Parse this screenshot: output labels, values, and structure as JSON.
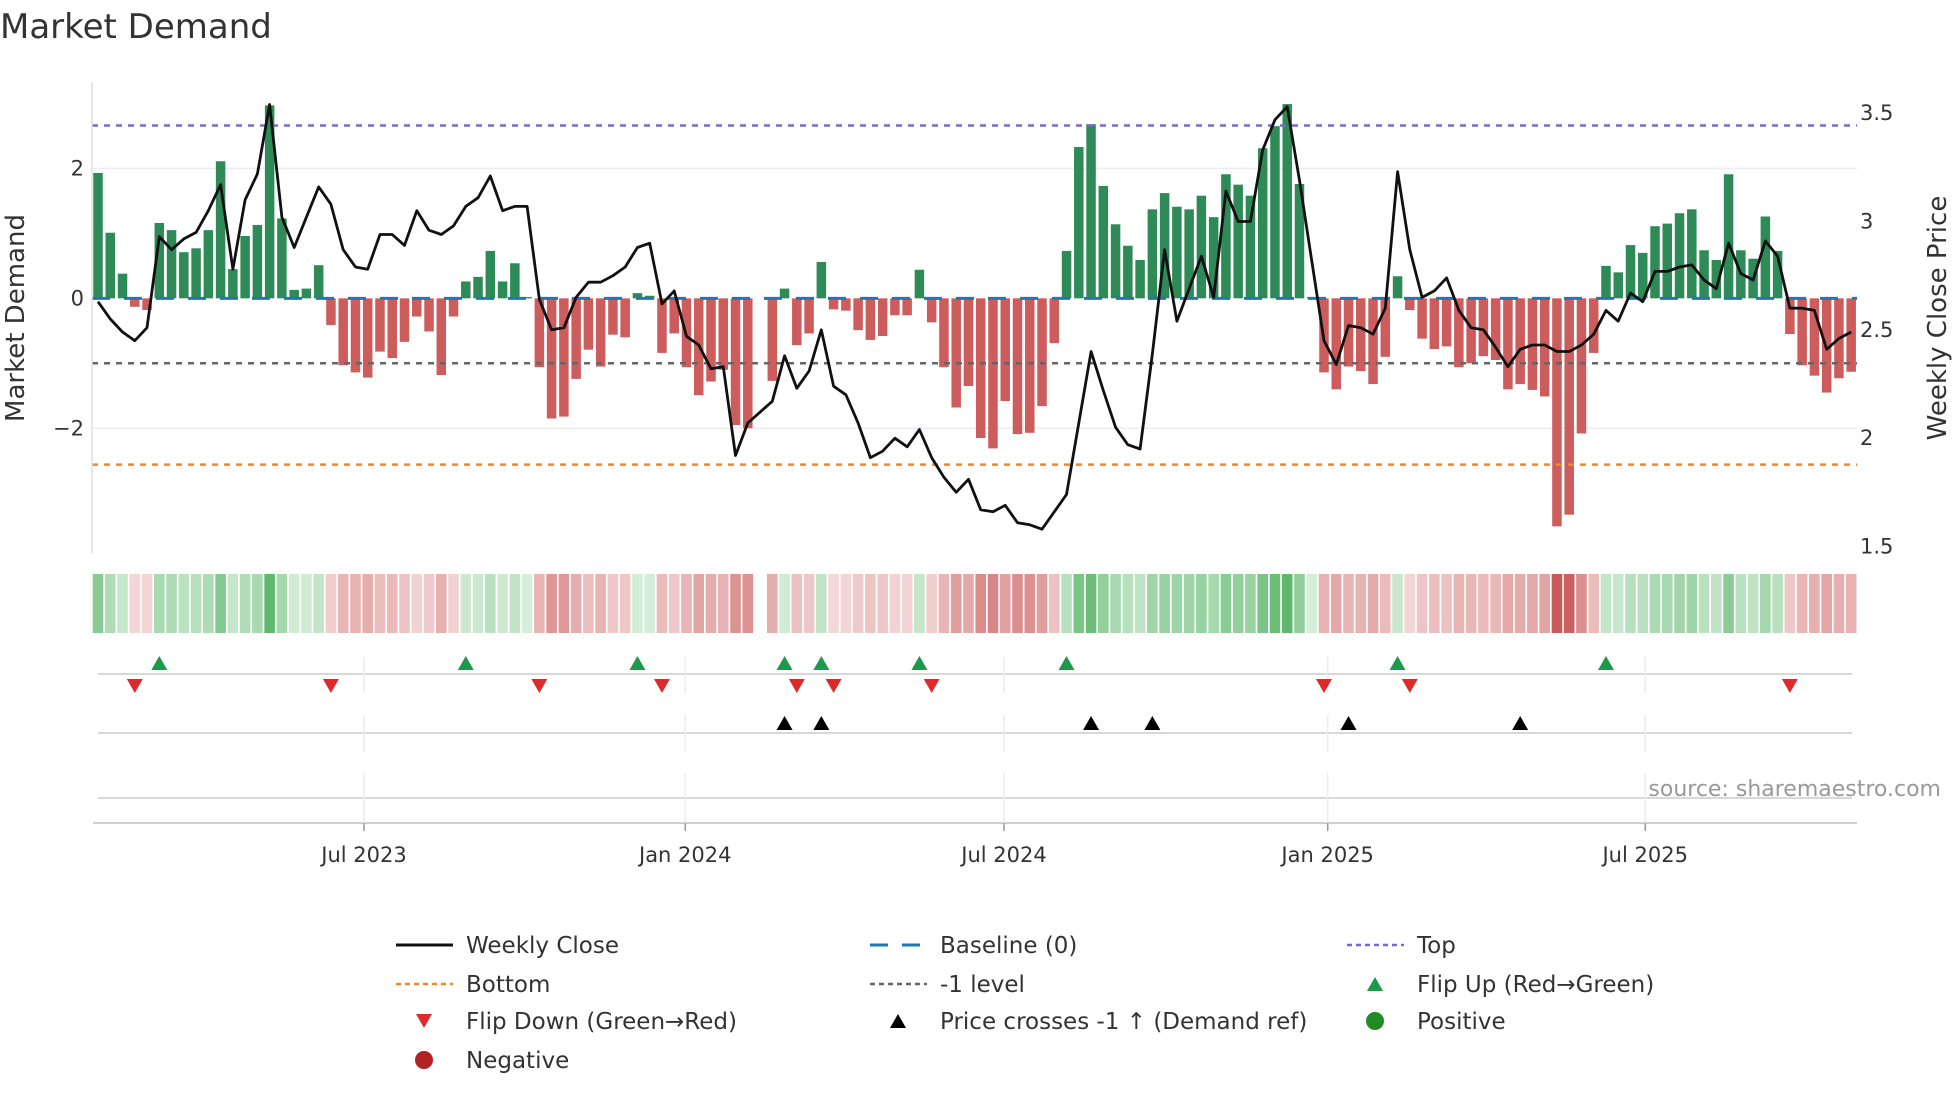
{
  "chart_data": {
    "type": "bar",
    "title": "Market Demand",
    "ylabel": "Market Demand",
    "y2label": "Weekly Close Price",
    "ylim": [
      -3.92,
      3.33
    ],
    "y2lim": [
      1.47,
      3.644
    ],
    "yticks": [
      {
        "value": 2,
        "label": "2"
      },
      {
        "value": 0,
        "label": "0"
      },
      {
        "value": -2,
        "label": "−2"
      }
    ],
    "y2ticks": [
      {
        "value": 3.5,
        "label": "3.5"
      },
      {
        "value": 3,
        "label": "3"
      },
      {
        "value": 2.5,
        "label": "2.5"
      },
      {
        "value": 2,
        "label": "2"
      },
      {
        "value": 1.5,
        "label": "1.5"
      }
    ],
    "xticks": [
      {
        "week": 21.7,
        "label": "Jul 2023"
      },
      {
        "week": 47.9,
        "label": "Jan 2024"
      },
      {
        "week": 73.9,
        "label": "Jul 2024"
      },
      {
        "week": 100.3,
        "label": "Jan 2025"
      },
      {
        "week": 126.2,
        "label": "Jul 2025"
      }
    ],
    "levels": {
      "top": 2.66,
      "bottom": -2.56,
      "minus_one": -1,
      "baseline": 0
    },
    "demand": [
      1.93,
      1.01,
      0.38,
      -0.13,
      -0.18,
      1.16,
      1.05,
      0.71,
      0.77,
      1.05,
      2.11,
      0.45,
      0.96,
      1.13,
      2.97,
      1.23,
      0.13,
      0.15,
      0.51,
      -0.41,
      -1.03,
      -1.14,
      -1.22,
      -0.82,
      -0.92,
      -0.67,
      -0.28,
      -0.51,
      -1.18,
      -0.28,
      0.26,
      0.33,
      0.73,
      0.26,
      0.54,
      0.02,
      -1.06,
      -1.85,
      -1.82,
      -1.24,
      -0.79,
      -1.05,
      -0.56,
      -0.6,
      0.08,
      0.04,
      -0.84,
      -0.54,
      -1.06,
      -1.49,
      -1.28,
      -1.1,
      -1.95,
      -2.0,
      null,
      -1.27,
      0.15,
      -0.72,
      -0.54,
      0.56,
      -0.17,
      -0.19,
      -0.49,
      -0.64,
      -0.58,
      -0.26,
      -0.26,
      0.44,
      -0.37,
      -1.06,
      -1.68,
      -1.35,
      -2.15,
      -2.31,
      -1.58,
      -2.09,
      -2.07,
      -1.66,
      -0.69,
      0.73,
      2.33,
      2.68,
      1.73,
      1.14,
      0.81,
      0.59,
      1.37,
      1.62,
      1.41,
      1.37,
      1.58,
      1.25,
      1.91,
      1.75,
      1.58,
      2.31,
      2.65,
      2.99,
      1.76,
      0.02,
      -1.14,
      -1.4,
      -1.05,
      -1.12,
      -1.32,
      -0.9,
      0.34,
      -0.18,
      -0.62,
      -0.78,
      -0.74,
      -1.06,
      -1.0,
      -0.89,
      -0.95,
      -1.4,
      -1.32,
      -1.41,
      -1.51,
      -3.51,
      -3.33,
      -2.08,
      -0.84,
      0.5,
      0.4,
      0.82,
      0.7,
      1.11,
      1.15,
      1.31,
      1.37,
      0.74,
      0.59,
      1.91,
      0.74,
      0.61,
      1.26,
      0.73,
      -0.55,
      -1.03,
      -1.19,
      -1.45,
      -1.23,
      -1.13
    ],
    "weekly_close": [
      2.63,
      2.55,
      2.49,
      2.45,
      2.51,
      2.93,
      2.87,
      2.92,
      2.95,
      3.05,
      3.17,
      2.78,
      3.1,
      3.22,
      3.54,
      3.02,
      2.88,
      3.02,
      3.16,
      3.08,
      2.87,
      2.79,
      2.78,
      2.94,
      2.94,
      2.89,
      3.05,
      2.96,
      2.94,
      2.98,
      3.07,
      3.11,
      3.21,
      3.05,
      3.07,
      3.07,
      2.64,
      2.5,
      2.51,
      2.65,
      2.72,
      2.72,
      2.75,
      2.79,
      2.88,
      2.9,
      2.62,
      2.68,
      2.47,
      2.43,
      2.32,
      2.33,
      1.92,
      2.07,
      2.12,
      2.17,
      2.38,
      2.23,
      2.31,
      2.5,
      2.24,
      2.2,
      2.07,
      1.91,
      1.94,
      2.0,
      1.96,
      2.04,
      1.91,
      1.82,
      1.75,
      1.81,
      1.67,
      1.66,
      1.69,
      1.61,
      1.6,
      1.58,
      1.66,
      1.74,
      2.07,
      2.4,
      2.22,
      2.05,
      1.97,
      1.95,
      2.39,
      2.87,
      2.54,
      2.69,
      2.84,
      2.65,
      3.14,
      3.0,
      3.0,
      3.33,
      3.47,
      3.53,
      3.19,
      2.82,
      2.45,
      2.34,
      2.52,
      2.51,
      2.48,
      2.6,
      3.23,
      2.87,
      2.65,
      2.68,
      2.74,
      2.59,
      2.51,
      2.5,
      2.42,
      2.33,
      2.41,
      2.43,
      2.43,
      2.4,
      2.4,
      2.43,
      2.48,
      2.59,
      2.54,
      2.67,
      2.63,
      2.77,
      2.77,
      2.79,
      2.8,
      2.73,
      2.69,
      2.9,
      2.76,
      2.73,
      2.91,
      2.84,
      2.6,
      2.6,
      2.59,
      2.41,
      2.46,
      2.49
    ],
    "flip_up_weeks": [
      5,
      30,
      44,
      56,
      59,
      67,
      79,
      106,
      123
    ],
    "flip_down_weeks": [
      3,
      19,
      36,
      46,
      57,
      60,
      68,
      100,
      107,
      138
    ],
    "price_cross_weeks": [
      56,
      59,
      81,
      86,
      102,
      116
    ],
    "legend": [
      {
        "label": "Weekly Close",
        "kind": "line"
      },
      {
        "label": "Baseline (0)",
        "kind": "baseline"
      },
      {
        "label": "Top",
        "kind": "top"
      },
      {
        "label": "Bottom",
        "kind": "bottom"
      },
      {
        "label": "-1 level",
        "kind": "minus1"
      },
      {
        "label": "Flip Up (Red→Green)",
        "kind": "flipup"
      },
      {
        "label": "Flip Down (Green→Red)",
        "kind": "flipdown"
      },
      {
        "label": "Price crosses -1 ↑ (Demand ref)",
        "kind": "cross"
      },
      {
        "label": "Positive",
        "kind": "positive"
      },
      {
        "label": "Negative",
        "kind": "negative"
      }
    ],
    "legend_placement": "bottom",
    "source": "source: sharemaestro.com",
    "colors": {
      "positive": "#2e8b57",
      "negative": "#cd5c5c",
      "line": "#111111",
      "top": "#7b68ce",
      "bottom": "#f08a24",
      "minus1": "#666666",
      "baseline": "#1f77b4",
      "flip_up": "#1a9a4a",
      "flip_down": "#dd2a2a",
      "cross": "#000000",
      "positive_dot": "#228b22",
      "negative_dot": "#b22222"
    }
  }
}
